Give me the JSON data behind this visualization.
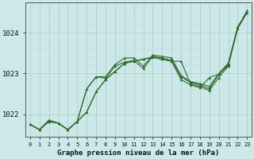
{
  "hours": [
    0,
    1,
    2,
    3,
    4,
    5,
    6,
    7,
    8,
    9,
    10,
    11,
    12,
    13,
    14,
    15,
    16,
    17,
    18,
    19,
    20,
    21,
    22,
    23
  ],
  "series1": [
    1021.75,
    1021.62,
    1021.85,
    1021.78,
    1021.62,
    1021.82,
    1022.05,
    1022.55,
    1022.85,
    1023.05,
    1023.25,
    1023.3,
    1023.35,
    1023.4,
    1023.35,
    1023.3,
    1022.85,
    1022.72,
    1022.65,
    1022.9,
    1022.98,
    1023.2,
    1024.15,
    1024.5
  ],
  "series2": [
    1021.75,
    1021.62,
    1021.85,
    1021.78,
    1021.62,
    1021.82,
    1022.05,
    1022.55,
    1022.85,
    1023.05,
    1023.25,
    1023.3,
    1023.35,
    1023.4,
    1023.35,
    1023.3,
    1023.3,
    1022.75,
    1022.68,
    1022.58,
    1022.9,
    1023.18,
    1024.1,
    1024.5
  ],
  "series3": [
    1021.75,
    1021.62,
    1021.82,
    1021.78,
    1021.62,
    1021.82,
    1022.62,
    1022.92,
    1022.88,
    1023.18,
    1023.28,
    1023.32,
    1023.12,
    1023.42,
    1023.38,
    1023.32,
    1022.92,
    1022.78,
    1022.72,
    1022.62,
    1022.98,
    1023.22,
    1024.12,
    1024.5
  ],
  "series4": [
    1021.75,
    1021.62,
    1021.82,
    1021.78,
    1021.62,
    1021.82,
    1022.62,
    1022.92,
    1022.92,
    1023.22,
    1023.38,
    1023.38,
    1023.18,
    1023.45,
    1023.42,
    1023.38,
    1022.95,
    1022.8,
    1022.75,
    1022.68,
    1023.0,
    1023.25,
    1024.12,
    1024.55
  ],
  "line_color": "#2d6a2d",
  "bg_color": "#cce8e8",
  "grid_major_color": "#b0c8c8",
  "grid_minor_color": "#c0d8d8",
  "xlabel": "Graphe pression niveau de la mer (hPa)",
  "ylim": [
    1021.45,
    1024.75
  ],
  "yticks": [
    1022,
    1023,
    1024
  ],
  "xticks": [
    0,
    1,
    2,
    3,
    4,
    5,
    6,
    7,
    8,
    9,
    10,
    11,
    12,
    13,
    14,
    15,
    16,
    17,
    18,
    19,
    20,
    21,
    22,
    23
  ]
}
